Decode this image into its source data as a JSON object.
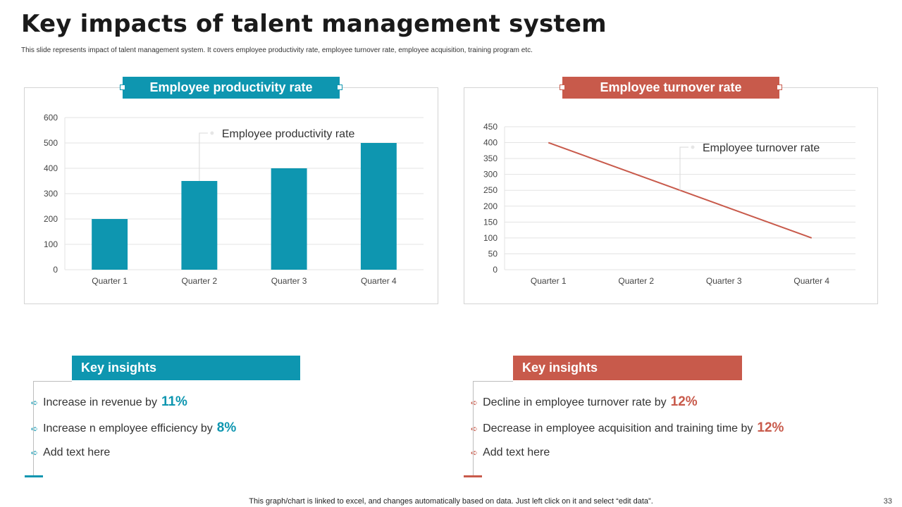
{
  "page": {
    "title": "Key impacts of talent management system",
    "subtitle": "This slide represents impact of talent management system. It covers employee productivity rate, employee turnover rate, employee acquisition, training program etc.",
    "footer": "This graph/chart is linked to excel,  and changes automatically based on data. Just left click on it and select “edit data”.",
    "page_number": "33"
  },
  "colors": {
    "teal": "#0e96b0",
    "red": "#c85a4b",
    "grid": "#e3e3e3",
    "axis_text": "#444444"
  },
  "left_panel": {
    "header": "Employee productivity rate",
    "insights_header": "Key insights",
    "insights": [
      {
        "text": "Increase  in revenue  by",
        "value": "11%"
      },
      {
        "text": "Increase  n employee efficiency by",
        "value": "8%"
      },
      {
        "text": "Add text here",
        "value": ""
      }
    ]
  },
  "right_panel": {
    "header": "Employee turnover rate",
    "insights_header": "Key insights",
    "insights": [
      {
        "text": "Decline in employee turnover  rate by",
        "value": "12%"
      },
      {
        "text": "Decrease in employee acquisition and training time by",
        "value": "12%"
      },
      {
        "text": "Add text here",
        "value": ""
      }
    ]
  },
  "chart_data": [
    {
      "type": "bar",
      "categories": [
        "Quarter 1",
        "Quarter 2",
        "Quarter 3",
        "Quarter 4"
      ],
      "series": [
        {
          "name": "Employee productivity rate",
          "values": [
            200,
            350,
            400,
            500
          ]
        }
      ],
      "ylim": [
        0,
        600
      ],
      "yticks": [
        0,
        100,
        200,
        300,
        400,
        500,
        600
      ],
      "data_label": "Employee productivity rate",
      "grid": true
    },
    {
      "type": "line",
      "categories": [
        "Quarter 1",
        "Quarter 2",
        "Quarter 3",
        "Quarter 4"
      ],
      "series": [
        {
          "name": "Employee turnover rate",
          "values": [
            400,
            300,
            200,
            100
          ]
        }
      ],
      "ylim": [
        0,
        450
      ],
      "yticks": [
        0,
        50,
        100,
        150,
        200,
        250,
        300,
        350,
        400,
        450
      ],
      "data_label": "Employee turnover rate",
      "grid": true
    }
  ]
}
